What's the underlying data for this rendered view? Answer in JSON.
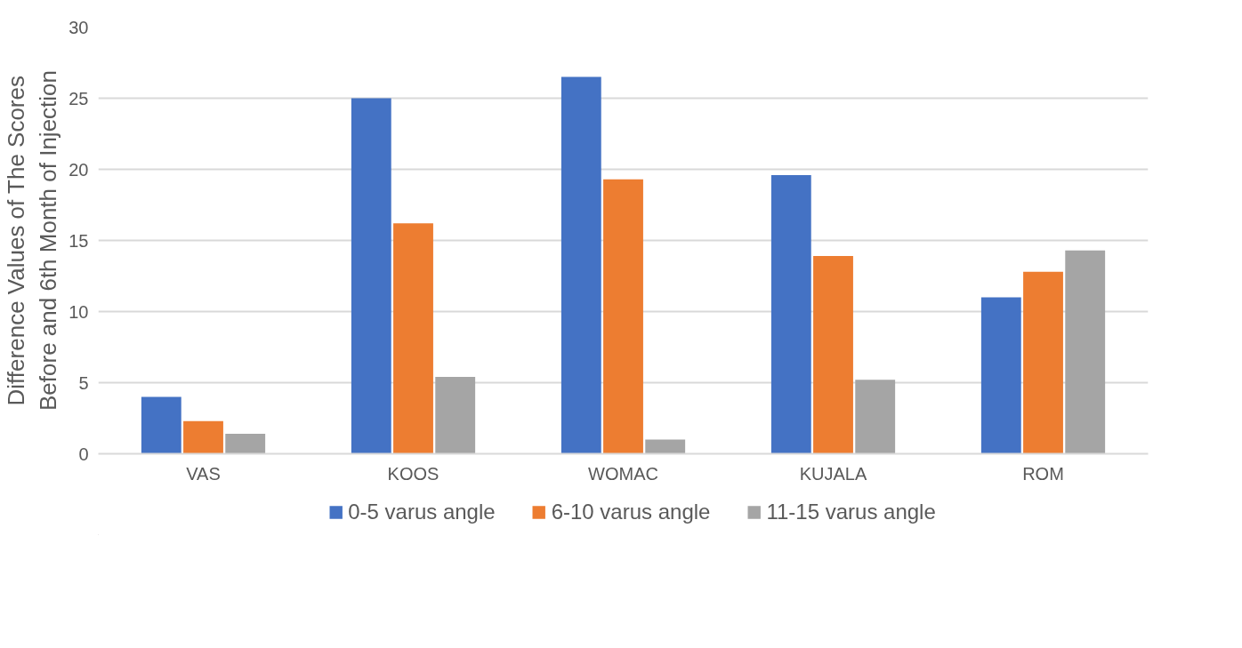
{
  "chart_data": {
    "type": "bar",
    "ylabel": "Difference Values of The Scores\nBefore and 6th Month of Injection",
    "categories": [
      "VAS",
      "KOOS",
      "WOMAC",
      "KUJALA",
      "ROM"
    ],
    "series": [
      {
        "name": "0-5 varus angle",
        "color": "#4472c4",
        "values": [
          4.0,
          25.0,
          26.5,
          19.6,
          11.0
        ]
      },
      {
        "name": "6-10 varus angle",
        "color": "#ed7d31",
        "values": [
          2.3,
          16.2,
          19.3,
          13.9,
          12.8
        ]
      },
      {
        "name": "11-15 varus angle",
        "color": "#a5a5a5",
        "values": [
          1.4,
          5.4,
          1.0,
          5.2,
          14.3
        ]
      }
    ],
    "ylim": [
      0,
      30
    ],
    "yticks": [
      0,
      5,
      10,
      15,
      20,
      25,
      30
    ],
    "grid": "y",
    "legend": "bottom"
  }
}
